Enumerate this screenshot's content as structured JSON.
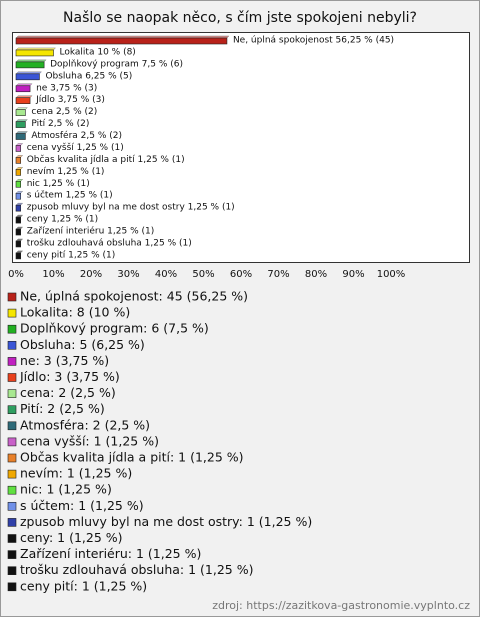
{
  "chart_data": {
    "type": "bar",
    "orientation": "horizontal",
    "title": "Našlo se naopak něco, s čím jste spokojeni nebyli?",
    "categories": [
      "Ne, úplná spokojenost",
      "Lokalita",
      "Doplňkový program",
      "Obsluha",
      "ne",
      "Jídlo",
      "cena",
      "Pití",
      "Atmosféra",
      "cena vyšší",
      "Občas kvalita jídla a pití",
      "nevím",
      "nic",
      "s účtem",
      "zpusob mluvy byl na me dost ostry",
      "ceny",
      "Zařízení interiéru",
      "trošku zdlouhavá obsluha",
      "ceny pití"
    ],
    "values": [
      56.25,
      10,
      7.5,
      6.25,
      3.75,
      3.75,
      2.5,
      2.5,
      2.5,
      1.25,
      1.25,
      1.25,
      1.25,
      1.25,
      1.25,
      1.25,
      1.25,
      1.25,
      1.25
    ],
    "value_labels": [
      "Ne, úplná spokojenost 56,25 % (45)",
      "Lokalita 10 % (8)",
      "Doplňkový program 7,5 % (6)",
      "Obsluha 6,25 % (5)",
      "ne 3,75 % (3)",
      "Jídlo 3,75 % (3)",
      "cena 2,5 % (2)",
      "Pití 2,5 % (2)",
      "Atmosféra 2,5 % (2)",
      "cena vyšší 1,25 % (1)",
      "Občas kvalita jídla a pití 1,25 % (1)",
      "nevím 1,25 % (1)",
      "nic 1,25 % (1)",
      "s účtem 1,25 % (1)",
      "zpusob mluvy byl na me dost ostry 1,25 % (1)",
      "ceny 1,25 % (1)",
      "Zařízení interiéru 1,25 % (1)",
      "trošku zdlouhavá obsluha 1,25 % (1)",
      "ceny pití 1,25 % (1)"
    ],
    "legend_labels": [
      "Ne, úplná spokojenost: 45 (56,25 %)",
      "Lokalita: 8 (10 %)",
      "Doplňkový program: 6 (7,5 %)",
      "Obsluha: 5 (6,25 %)",
      "ne: 3 (3,75 %)",
      "Jídlo: 3 (3,75 %)",
      "cena: 2 (2,5 %)",
      "Pití: 2 (2,5 %)",
      "Atmosféra: 2 (2,5 %)",
      "cena vyšší: 1 (1,25 %)",
      "Občas kvalita jídla a pití: 1 (1,25 %)",
      "nevím: 1 (1,25 %)",
      "nic: 1 (1,25 %)",
      "s účtem: 1 (1,25 %)",
      "zpusob mluvy byl na me dost ostry: 1 (1,25 %)",
      "ceny: 1 (1,25 %)",
      "Zařízení interiéru: 1 (1,25 %)",
      "trošku zdlouhavá obsluha: 1 (1,25 %)",
      "ceny pití: 1 (1,25 %)"
    ],
    "colors": [
      "#b8221a",
      "#f5e600",
      "#22b022",
      "#3a55d6",
      "#c020c0",
      "#e8401c",
      "#a8e890",
      "#2e9e60",
      "#2e6a78",
      "#c860c8",
      "#e8802a",
      "#f0a800",
      "#60e040",
      "#7090e8",
      "#3040a8",
      "#111111",
      "#111111",
      "#111111",
      "#111111"
    ],
    "xlim": [
      0,
      120
    ],
    "xticks": [
      {
        "value": 0,
        "label": "0%"
      },
      {
        "value": 10,
        "label": "10%"
      },
      {
        "value": 20,
        "label": "20%"
      },
      {
        "value": 30,
        "label": "30%"
      },
      {
        "value": 40,
        "label": "40%"
      },
      {
        "value": 50,
        "label": "50%"
      },
      {
        "value": 60,
        "label": "60%"
      },
      {
        "value": 70,
        "label": "70%"
      },
      {
        "value": 80,
        "label": "80%"
      },
      {
        "value": 90,
        "label": "90%"
      },
      {
        "value": 100,
        "label": "100%"
      }
    ],
    "source": "zdroj: https://zazitkova-gastronomie.vyplnto.cz"
  }
}
